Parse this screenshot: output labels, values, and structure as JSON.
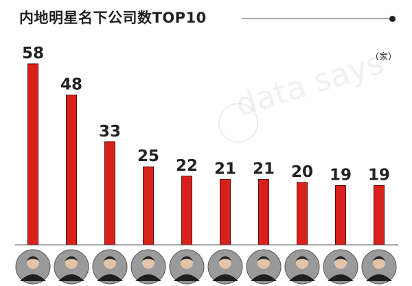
{
  "title": "内地明星名下公司数TOP10",
  "unit": "（家）",
  "watermark": "data says",
  "colors": {
    "bar": "#d9211c",
    "bar_stroke": "#5a0c09",
    "label": "#222222"
  },
  "chart_data": {
    "type": "bar",
    "title": "内地明星名下公司数TOP10",
    "categories": [
      "",
      "",
      "",
      "",
      "",
      "",
      "",
      "",
      "",
      ""
    ],
    "values": [
      58,
      48,
      33,
      25,
      22,
      21,
      21,
      20,
      19,
      19
    ],
    "ylabel": "（家）",
    "ylim": [
      0,
      58
    ],
    "grid": false,
    "legend": "none"
  }
}
